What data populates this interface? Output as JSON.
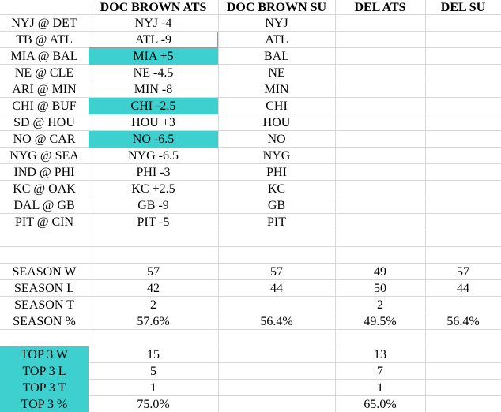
{
  "header": {
    "columns": [
      "DOC BROWN ATS",
      "DOC BROWN SU",
      "DEL ATS",
      "DEL SU"
    ]
  },
  "games": [
    {
      "matchup": "NYJ @ DET",
      "doc_ats": "NYJ -4",
      "doc_su": "NYJ"
    },
    {
      "matchup": "TB @ ATL",
      "doc_ats": "ATL -9",
      "doc_su": "ATL",
      "selected": true
    },
    {
      "matchup": "MIA @ BAL",
      "doc_ats": "MIA +5",
      "doc_su": "BAL",
      "highlight": true
    },
    {
      "matchup": "NE @ CLE",
      "doc_ats": "NE -4.5",
      "doc_su": "NE"
    },
    {
      "matchup": "ARI @ MIN",
      "doc_ats": "MIN -8",
      "doc_su": "MIN"
    },
    {
      "matchup": "CHI @ BUF",
      "doc_ats": "CHI -2.5",
      "doc_su": "CHI",
      "highlight": true
    },
    {
      "matchup": "SD @ HOU",
      "doc_ats": "HOU +3",
      "doc_su": "HOU"
    },
    {
      "matchup": "NO @ CAR",
      "doc_ats": "NO -6.5",
      "doc_su": "NO",
      "highlight": true
    },
    {
      "matchup": "NYG @ SEA",
      "doc_ats": "NYG -6.5",
      "doc_su": "NYG"
    },
    {
      "matchup": "IND @ PHI",
      "doc_ats": "PHI -3",
      "doc_su": "PHI"
    },
    {
      "matchup": "KC @ OAK",
      "doc_ats": "KC +2.5",
      "doc_su": "KC"
    },
    {
      "matchup": "DAL @ GB",
      "doc_ats": "GB -9",
      "doc_su": "GB"
    },
    {
      "matchup": "PIT @ CIN",
      "doc_ats": "PIT -5",
      "doc_su": "PIT"
    }
  ],
  "season": [
    {
      "label": "SEASON W",
      "doc_ats": 57,
      "doc_su": 57,
      "del_ats": 49,
      "del_su": 57
    },
    {
      "label": "SEASON L",
      "doc_ats": 42,
      "doc_su": 44,
      "del_ats": 50,
      "del_su": 44
    },
    {
      "label": "SEASON T",
      "doc_ats": 2,
      "del_ats": 2
    },
    {
      "label": "SEASON %",
      "doc_ats": "57.6%",
      "doc_su": "56.4%",
      "del_ats": "49.5%",
      "del_su": "56.4%"
    }
  ],
  "top3": [
    {
      "label": "TOP 3 W",
      "doc_ats": 15,
      "del_ats": 13
    },
    {
      "label": "TOP 3 L",
      "doc_ats": 5,
      "del_ats": 7
    },
    {
      "label": "TOP 3 T",
      "doc_ats": 1,
      "del_ats": 1
    },
    {
      "label": "TOP 3 %",
      "doc_ats": "75.0%",
      "del_ats": "65.0%"
    }
  ]
}
